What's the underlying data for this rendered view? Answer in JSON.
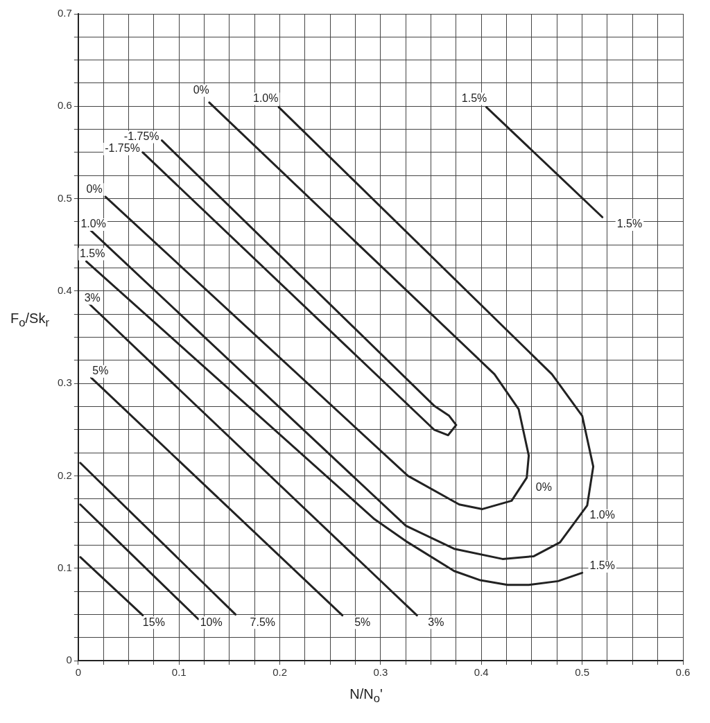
{
  "chart_data": {
    "type": "line",
    "xlabel": "N/N$_{o}$'",
    "ylabel": "F$_{o}$/Sk$_{r}$",
    "xlim": [
      0,
      0.6
    ],
    "ylim": [
      0,
      0.7
    ],
    "xticks": [
      0,
      {
        "value": 0.025,
        "label": null
      },
      {
        "value": 0.05,
        "label": null
      },
      {
        "value": 0.075,
        "label": null
      },
      0.1,
      {
        "value": 0.125,
        "label": null
      },
      {
        "value": 0.15,
        "label": null
      },
      {
        "value": 0.175,
        "label": null
      },
      0.2,
      {
        "value": 0.225,
        "label": null
      },
      {
        "value": 0.25,
        "label": null
      },
      {
        "value": 0.275,
        "label": null
      },
      0.3,
      {
        "value": 0.325,
        "label": null
      },
      {
        "value": 0.35,
        "label": null
      },
      {
        "value": 0.375,
        "label": null
      },
      0.4,
      {
        "value": 0.425,
        "label": null
      },
      {
        "value": 0.45,
        "label": null
      },
      {
        "value": 0.475,
        "label": null
      },
      0.5,
      {
        "value": 0.525,
        "label": null
      },
      {
        "value": 0.55,
        "label": null
      },
      {
        "value": 0.575,
        "label": null
      },
      0.6
    ],
    "yticks": [
      0,
      {
        "value": 0.025,
        "label": null
      },
      {
        "value": 0.05,
        "label": null
      },
      {
        "value": 0.075,
        "label": null
      },
      0.1,
      {
        "value": 0.125,
        "label": null
      },
      {
        "value": 0.15,
        "label": null
      },
      {
        "value": 0.175,
        "label": null
      },
      0.2,
      {
        "value": 0.225,
        "label": null
      },
      {
        "value": 0.25,
        "label": null
      },
      {
        "value": 0.275,
        "label": null
      },
      0.3,
      {
        "value": 0.325,
        "label": null
      },
      {
        "value": 0.35,
        "label": null
      },
      {
        "value": 0.375,
        "label": null
      },
      0.4,
      {
        "value": 0.425,
        "label": null
      },
      {
        "value": 0.45,
        "label": null
      },
      {
        "value": 0.475,
        "label": null
      },
      0.5,
      {
        "value": 0.525,
        "label": null
      },
      {
        "value": 0.55,
        "label": null
      },
      {
        "value": 0.575,
        "label": null
      },
      0.6,
      {
        "value": 0.625,
        "label": null
      },
      {
        "value": 0.65,
        "label": null
      },
      {
        "value": 0.675,
        "label": null
      },
      0.7
    ],
    "grid": true,
    "legend": false,
    "marker": "none",
    "line_style": "solid",
    "series": [
      {
        "color": "#222222",
        "x": [
          0.083,
          0.353,
          0.368,
          0.375,
          0.367,
          0.353,
          0.064
        ],
        "values": [
          0.563,
          0.276,
          0.265,
          0.255,
          0.244,
          0.25,
          0.55
        ]
      },
      {
        "color": "#222222",
        "x": [
          0.13,
          0.413,
          0.437,
          0.447,
          0.445,
          0.43,
          0.401,
          0.378,
          0.327,
          0.027
        ],
        "values": [
          0.604,
          0.31,
          0.272,
          0.222,
          0.198,
          0.173,
          0.164,
          0.169,
          0.2,
          0.502
        ]
      },
      {
        "color": "#222222",
        "x": [
          0.199,
          0.47,
          0.5,
          0.511,
          0.505,
          0.478,
          0.452,
          0.421,
          0.373,
          0.325,
          0.012
        ],
        "values": [
          0.599,
          0.31,
          0.265,
          0.21,
          0.168,
          0.128,
          0.113,
          0.11,
          0.121,
          0.146,
          0.466
        ]
      },
      {
        "color": "#222222",
        "x": [
          0.008,
          0.294,
          0.327,
          0.373,
          0.399,
          0.426,
          0.447,
          0.476,
          0.5
        ],
        "values": [
          0.432,
          0.153,
          0.128,
          0.097,
          0.087,
          0.082,
          0.082,
          0.086,
          0.095
        ]
      },
      {
        "color": "#222222",
        "x": [
          0.405,
          0.52
        ],
        "values": [
          0.599,
          0.48
        ]
      },
      {
        "color": "#222222",
        "x": [
          0.011,
          0.336
        ],
        "values": [
          0.386,
          0.049
        ]
      },
      {
        "color": "#222222",
        "x": [
          0.013,
          0.262
        ],
        "values": [
          0.306,
          0.049
        ]
      },
      {
        "color": "#222222",
        "x": [
          0.002,
          0.156
        ],
        "values": [
          0.214,
          0.05
        ]
      },
      {
        "color": "#222222",
        "x": [
          0.002,
          0.119
        ],
        "values": [
          0.169,
          0.045
        ]
      },
      {
        "color": "#222222",
        "x": [
          0.002,
          0.064
        ],
        "values": [
          0.112,
          0.049
        ]
      }
    ],
    "annotations": [
      {
        "text": "0%",
        "x": 0.122,
        "y": 0.617
      },
      {
        "text": "1.0%",
        "x": 0.186,
        "y": 0.608
      },
      {
        "text": "1.5%",
        "x": 0.393,
        "y": 0.608
      },
      {
        "text": "-1.75%",
        "x": 0.083,
        "y": 0.563
      },
      {
        "text": "-1.75%",
        "x": 0.064,
        "y": 0.55
      },
      {
        "text": "0%",
        "x": 0.016,
        "y": 0.51
      },
      {
        "text": "1.5%",
        "x": 0.547,
        "y": 0.472
      },
      {
        "text": "1.0%",
        "x": 0.015,
        "y": 0.472
      },
      {
        "text": "1.5%",
        "x": 0.014,
        "y": 0.44
      },
      {
        "text": "3%",
        "x": 0.014,
        "y": 0.392
      },
      {
        "text": "5%",
        "x": 0.022,
        "y": 0.313
      },
      {
        "text": "0%",
        "x": 0.462,
        "y": 0.187
      },
      {
        "text": "1.0%",
        "x": 0.52,
        "y": 0.157
      },
      {
        "text": "1.5%",
        "x": 0.52,
        "y": 0.102
      },
      {
        "text": "15%",
        "x": 0.075,
        "y": 0.041
      },
      {
        "text": "10%",
        "x": 0.132,
        "y": 0.041
      },
      {
        "text": "7.5%",
        "x": 0.183,
        "y": 0.041
      },
      {
        "text": "5%",
        "x": 0.282,
        "y": 0.041
      },
      {
        "text": "3%",
        "x": 0.355,
        "y": 0.041
      }
    ]
  }
}
